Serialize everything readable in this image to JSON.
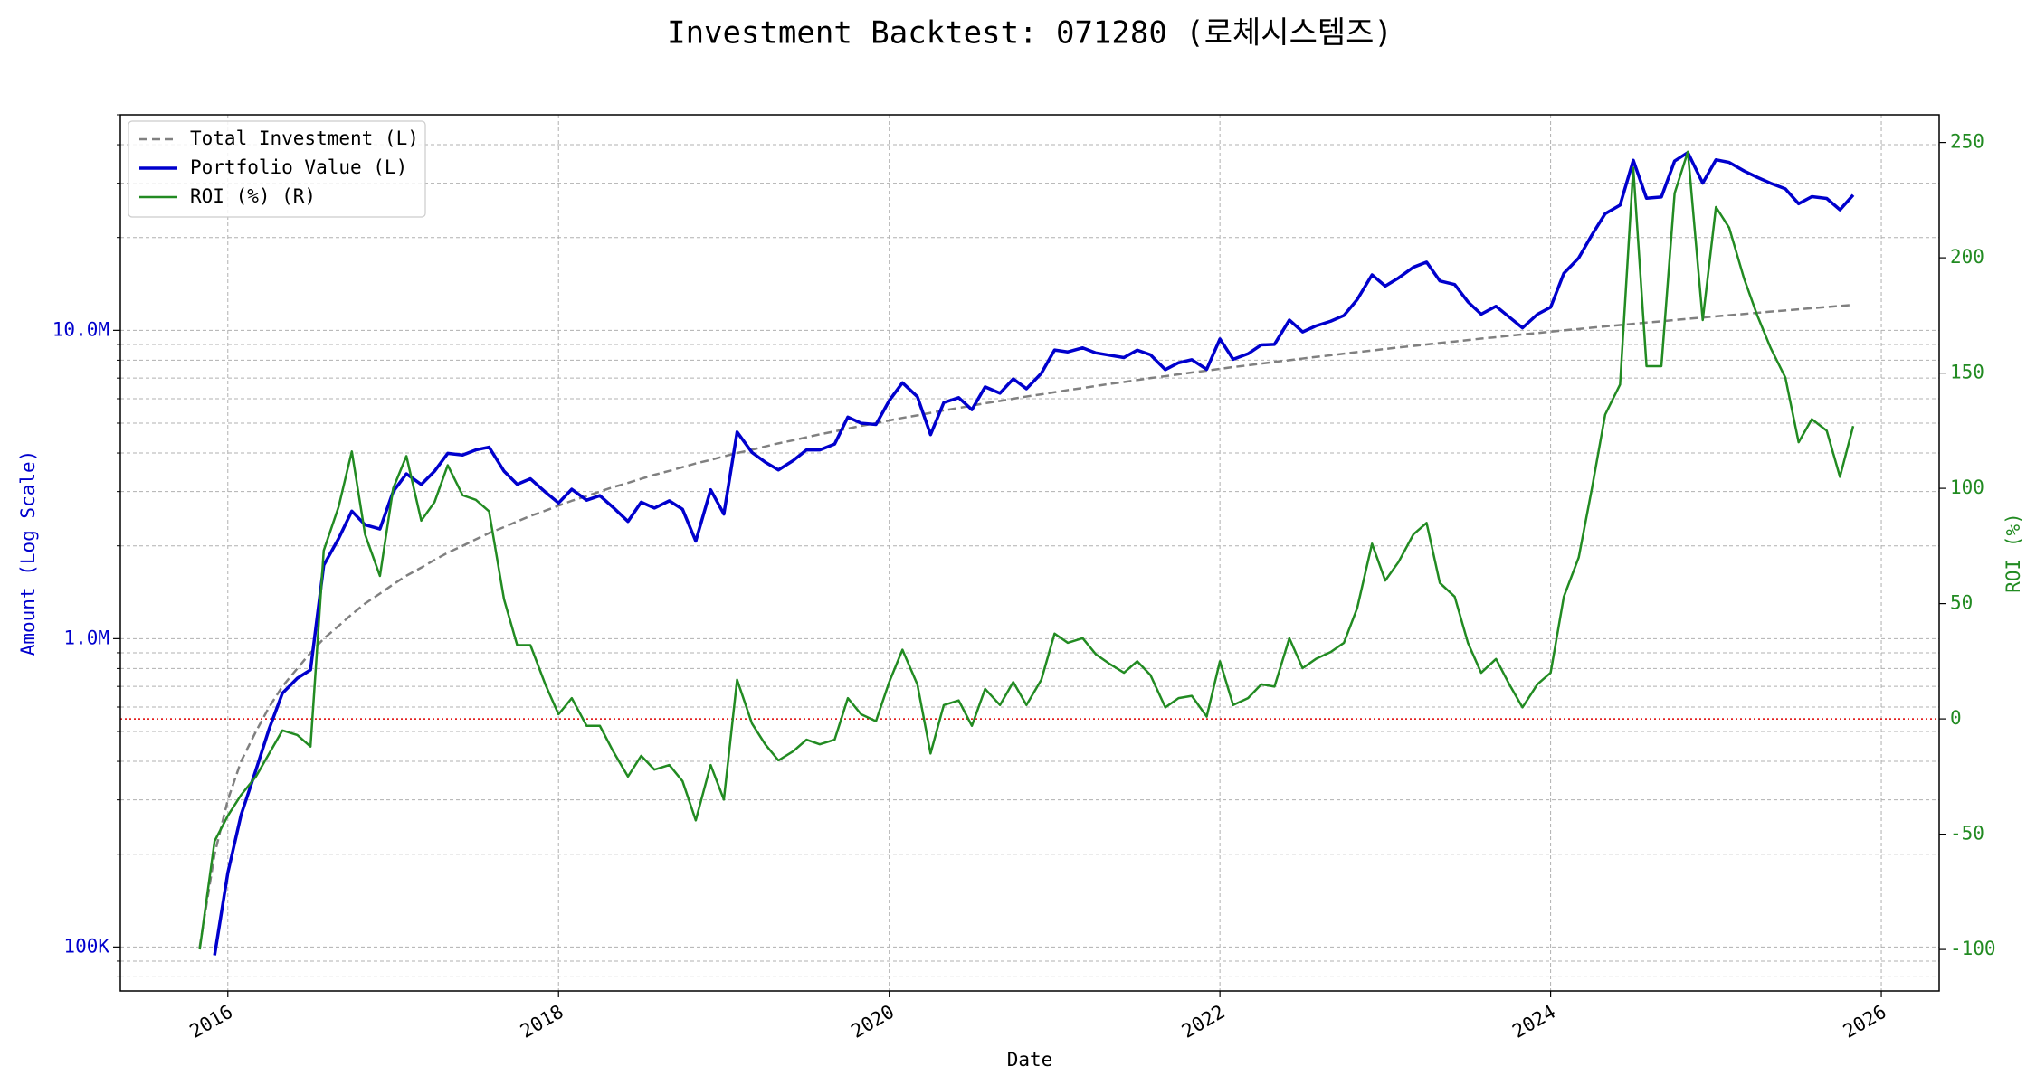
{
  "chart_data": {
    "type": "line",
    "title": "Investment Backtest: 071280 (로체시스템즈)",
    "x_label": "Date",
    "y_label": "Amount (Log Scale)",
    "y2_label": "ROI (%)",
    "y_color": "#0000cd",
    "y2_color": "#228b22",
    "log_y": true,
    "grid": true,
    "minor_grid": true,
    "legend": "upper left",
    "reference_line": {
      "axis": "y2",
      "value": 0,
      "color": "#e00000"
    },
    "xlim": [
      2015.35,
      2026.35
    ],
    "xticks": [
      2016,
      2018,
      2020,
      2022,
      2024,
      2026
    ],
    "ylim": [
      72000,
      50000000
    ],
    "yticks": [
      {
        "value": 100000,
        "label": "100K"
      },
      {
        "value": 1000000,
        "label": "1.0M"
      },
      {
        "value": 10000000,
        "label": "10.0M"
      }
    ],
    "y2lim": [
      -118,
      262
    ],
    "y2ticks": [
      -100,
      -50,
      0,
      50,
      100,
      150,
      200,
      250
    ],
    "x": [
      2015.83,
      2015.92,
      2016,
      2016.08,
      2016.17,
      2016.25,
      2016.33,
      2016.42,
      2016.5,
      2016.58,
      2016.67,
      2016.75,
      2016.83,
      2016.92,
      2017,
      2017.08,
      2017.17,
      2017.25,
      2017.33,
      2017.42,
      2017.5,
      2017.58,
      2017.67,
      2017.75,
      2017.83,
      2017.92,
      2018,
      2018.08,
      2018.17,
      2018.25,
      2018.33,
      2018.42,
      2018.5,
      2018.58,
      2018.67,
      2018.75,
      2018.83,
      2018.92,
      2019,
      2019.08,
      2019.17,
      2019.25,
      2019.33,
      2019.42,
      2019.5,
      2019.58,
      2019.67,
      2019.75,
      2019.83,
      2019.92,
      2020,
      2020.08,
      2020.17,
      2020.25,
      2020.33,
      2020.42,
      2020.5,
      2020.58,
      2020.67,
      2020.75,
      2020.83,
      2020.92,
      2021,
      2021.08,
      2021.17,
      2021.25,
      2021.33,
      2021.42,
      2021.5,
      2021.58,
      2021.67,
      2021.75,
      2021.83,
      2021.92,
      2022,
      2022.08,
      2022.17,
      2022.25,
      2022.33,
      2022.42,
      2022.5,
      2022.58,
      2022.67,
      2022.75,
      2022.83,
      2022.92,
      2023,
      2023.08,
      2023.17,
      2023.25,
      2023.33,
      2023.42,
      2023.5,
      2023.58,
      2023.67,
      2023.75,
      2023.83,
      2023.92,
      2024,
      2024.08,
      2024.17,
      2024.25,
      2024.33,
      2024.42,
      2024.5,
      2024.58,
      2024.67,
      2024.75,
      2024.83,
      2024.92,
      2025,
      2025.08,
      2025.17,
      2025.25,
      2025.33,
      2025.42,
      2025.5,
      2025.58,
      2025.67,
      2025.75,
      2025.83
    ],
    "series": [
      {
        "name": "Total Investment (L)",
        "color": "#808080",
        "dash": true,
        "width": 2.5,
        "axis": "y",
        "values": [
          100000,
          200000,
          300000,
          400000,
          500000,
          600000,
          700000,
          800000,
          900000,
          1000000,
          1100000,
          1200000,
          1300000,
          1400000,
          1500000,
          1600000,
          1700000,
          1800000,
          1900000,
          2000000,
          2100000,
          2200000,
          2300000,
          2400000,
          2500000,
          2600000,
          2700000,
          2800000,
          2900000,
          3000000,
          3100000,
          3200000,
          3300000,
          3400000,
          3500000,
          3600000,
          3700000,
          3800000,
          3900000,
          4000000,
          4100000,
          4200000,
          4300000,
          4400000,
          4500000,
          4600000,
          4700000,
          4800000,
          4900000,
          5000000,
          5100000,
          5200000,
          5300000,
          5400000,
          5500000,
          5600000,
          5700000,
          5800000,
          5900000,
          6000000,
          6100000,
          6200000,
          6300000,
          6400000,
          6500000,
          6600000,
          6700000,
          6800000,
          6900000,
          7000000,
          7100000,
          7200000,
          7300000,
          7400000,
          7500000,
          7600000,
          7700000,
          7800000,
          7900000,
          8000000,
          8100000,
          8200000,
          8300000,
          8400000,
          8500000,
          8600000,
          8700000,
          8800000,
          8900000,
          9000000,
          9100000,
          9200000,
          9300000,
          9400000,
          9500000,
          9600000,
          9700000,
          9800000,
          9900000,
          10000000,
          10100000,
          10200000,
          10300000,
          10400000,
          10500000,
          10600000,
          10700000,
          10800000,
          10900000,
          11000000,
          11100000,
          11200000,
          11300000,
          11400000,
          11500000,
          11600000,
          11700000,
          11800000,
          11900000,
          12000000,
          12100000
        ]
      },
      {
        "name": "Portfolio Value (L)",
        "color": "#0000cd",
        "dash": false,
        "width": 3.5,
        "axis": "y",
        "values": [
          null,
          94000,
          174000,
          268000,
          375000,
          510000,
          665000,
          744000,
          792000,
          1730000,
          2112000,
          2592000,
          2340000,
          2268000,
          3000000,
          3424000,
          3162000,
          3492000,
          3990000,
          3940000,
          4095000,
          4180000,
          3496000,
          3168000,
          3300000,
          2990000,
          2754000,
          3052000,
          2813000,
          2910000,
          2666000,
          2400000,
          2772000,
          2652000,
          2800000,
          2628000,
          2072000,
          3040000,
          2535000,
          4680000,
          4018000,
          3738000,
          3526000,
          3784000,
          4095000,
          4094000,
          4277000,
          5232000,
          4998000,
          4950000,
          5916000,
          6760000,
          6095000,
          4590000,
          5830000,
          6048000,
          5529000,
          6554000,
          6254000,
          6960000,
          6466000,
          7254000,
          8631000,
          8512000,
          8775000,
          8448000,
          8308000,
          8160000,
          8625000,
          8330000,
          7455000,
          7848000,
          8030000,
          7474000,
          9375000,
          8056000,
          8393000,
          8970000,
          9006000,
          10800000,
          9882000,
          10332000,
          10707000,
          11172000,
          12580000,
          15136000,
          13920000,
          14784000,
          16020000,
          16650000,
          14469000,
          14076000,
          12369000,
          11280000,
          11970000,
          11040000,
          10185000,
          11270000,
          11880000,
          15300000,
          17170000,
          20400000,
          23896000,
          25480000,
          35595000,
          26818000,
          27071000,
          35424000,
          37714000,
          30030000,
          35742000,
          35056000,
          32883000,
          31350000,
          30015000,
          28768000,
          25740000,
          27140000,
          26775000,
          24600000,
          27467000
        ]
      },
      {
        "name": "ROI (%) (R)",
        "color": "#228b22",
        "dash": false,
        "width": 2.5,
        "axis": "y2",
        "values": [
          -100,
          -53,
          -42,
          -33,
          -25,
          -15,
          -5,
          -7,
          -12,
          73,
          92,
          116,
          80,
          62,
          100,
          114,
          86,
          94,
          110,
          97,
          95,
          90,
          52,
          32,
          32,
          15,
          2,
          9,
          -3,
          -3,
          -14,
          -25,
          -16,
          -22,
          -20,
          -27,
          -44,
          -20,
          -35,
          17,
          -2,
          -11,
          -18,
          -14,
          -9,
          -11,
          -9,
          9,
          2,
          -1,
          16,
          30,
          15,
          -15,
          6,
          8,
          -3,
          13,
          6,
          16,
          6,
          17,
          37,
          33,
          35,
          28,
          24,
          20,
          25,
          19,
          5,
          9,
          10,
          1,
          25,
          6,
          9,
          15,
          14,
          35,
          22,
          26,
          29,
          33,
          48,
          76,
          60,
          68,
          80,
          85,
          59,
          53,
          33,
          20,
          26,
          15,
          5,
          15,
          20,
          53,
          70,
          100,
          132,
          145,
          239,
          153,
          153,
          228,
          246,
          173,
          222,
          213,
          191,
          175,
          161,
          148,
          120,
          130,
          125,
          105,
          127
        ]
      }
    ]
  }
}
